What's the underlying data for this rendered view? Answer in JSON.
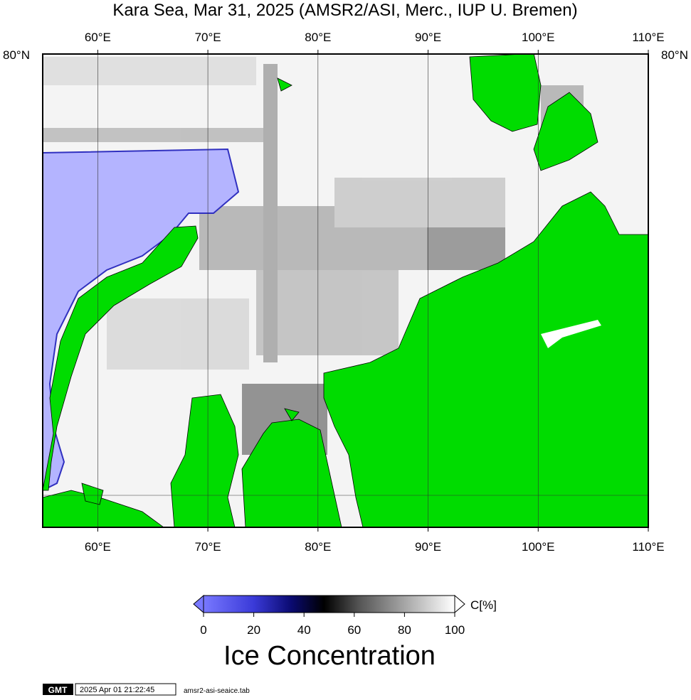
{
  "map": {
    "title": "Kara Sea, Mar 31, 2025 (AMSR2/ASI, Merc., IUP U. Bremen)",
    "lonlim": [
      55,
      110
    ],
    "lon_ticks": [
      {
        "value": 60,
        "label": "60°E"
      },
      {
        "value": 70,
        "label": "70°E"
      },
      {
        "value": 80,
        "label": "80°E"
      },
      {
        "value": 90,
        "label": "90°E"
      },
      {
        "value": 100,
        "label": "100°E"
      },
      {
        "value": 110,
        "label": "110°E"
      }
    ],
    "lat_label": "80°N"
  },
  "colorbar": {
    "range": [
      0,
      100
    ],
    "ticks": [
      0,
      20,
      40,
      60,
      80,
      100
    ],
    "unit": "C[%]",
    "label": "Ice Concentration"
  },
  "footer": {
    "logo": "GMT",
    "timestamp": "2025 Apr 01 21:22:45",
    "file": "amsr2-asi-seaice.tab"
  }
}
